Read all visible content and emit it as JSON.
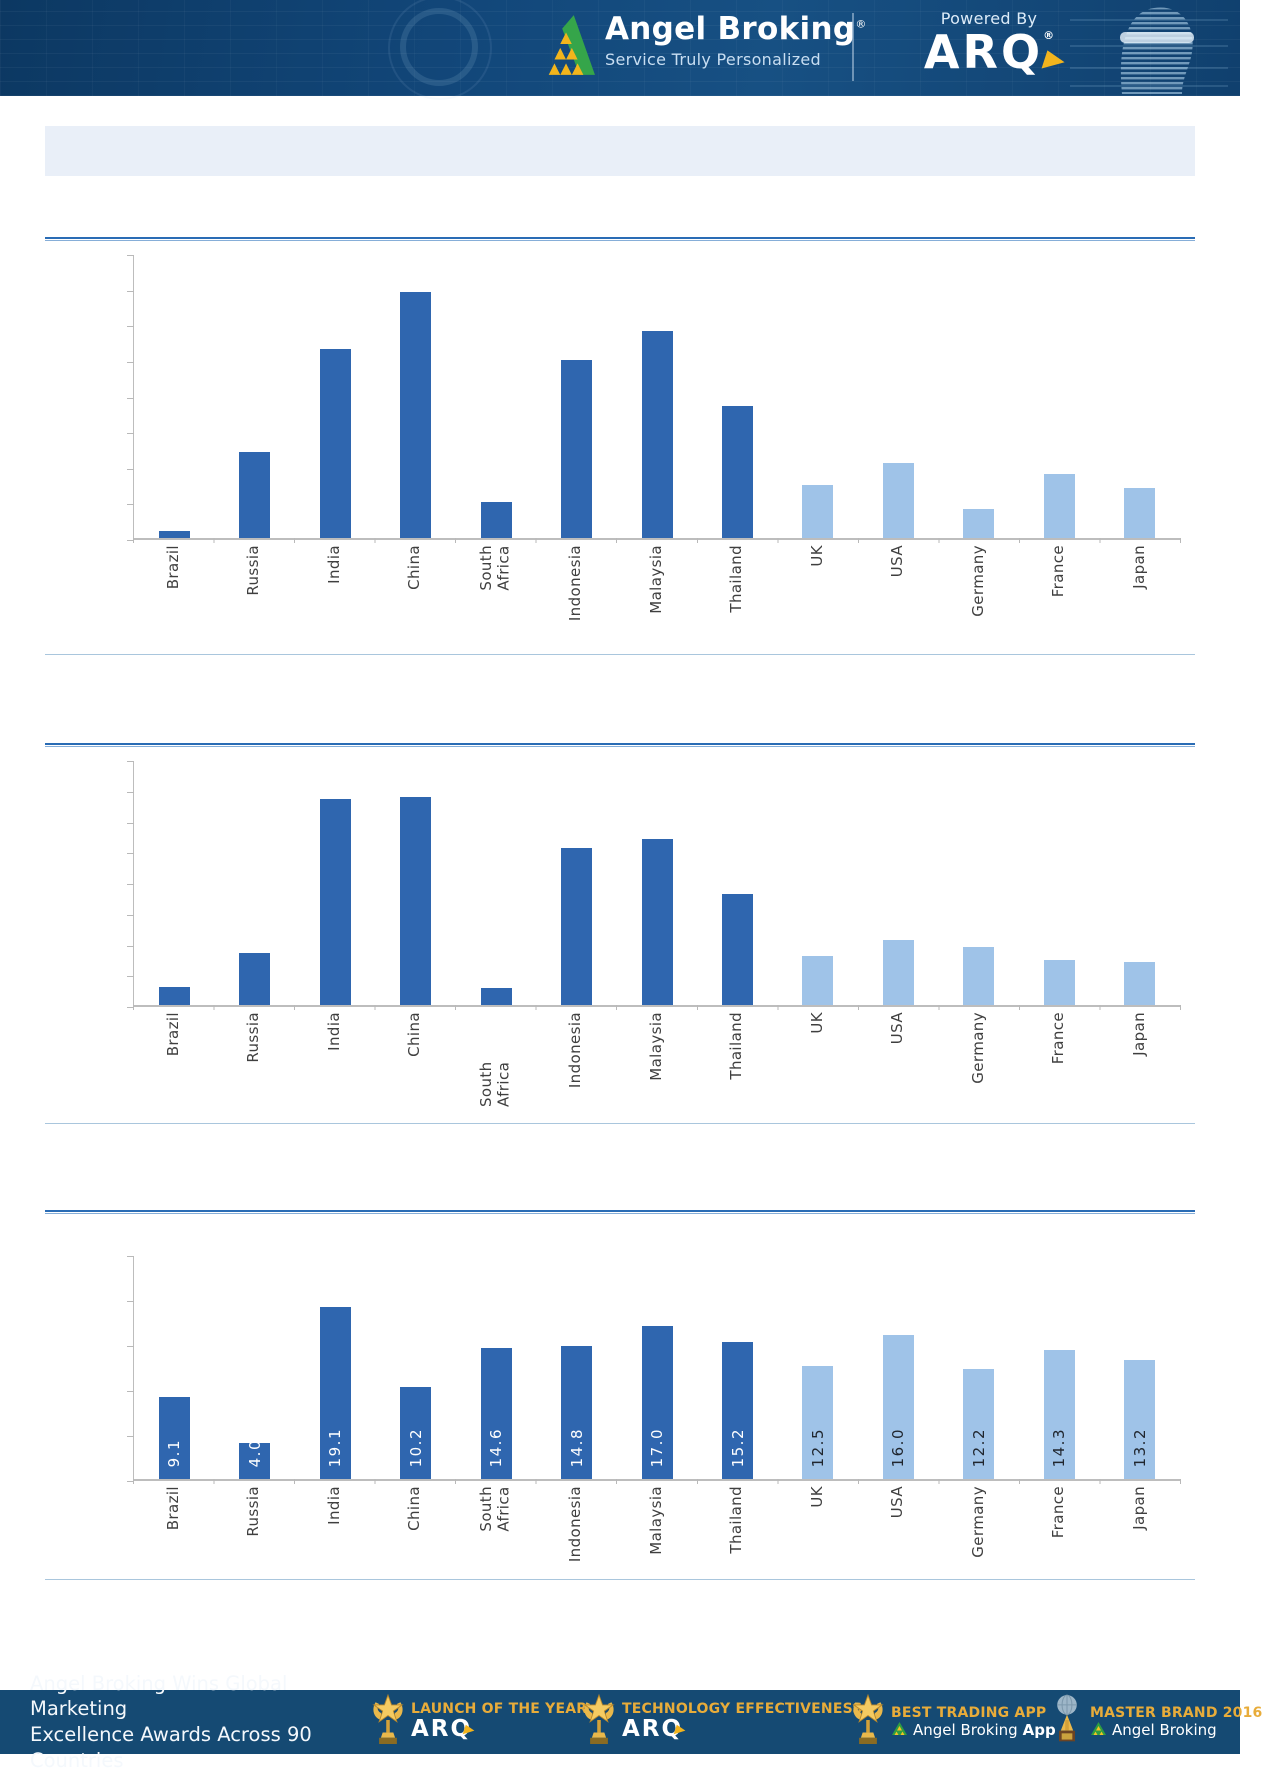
{
  "page": {
    "title_bar_text": ""
  },
  "header": {
    "brand": "Angel Broking",
    "brand_mark": "®",
    "tagline": "Service Truly Personalized",
    "powered_by": "Powered By",
    "arq": "ARQ",
    "arq_mark": "®"
  },
  "chart_data": [
    {
      "type": "bar",
      "title": "",
      "categories": [
        "Brazil",
        "Russia",
        "India",
        "China",
        "South Africa",
        "Indonesia",
        "Malaysia",
        "Thailand",
        "UK",
        "USA",
        "Germany",
        "France",
        "Japan"
      ],
      "values": [
        0.2,
        2.4,
        5.3,
        6.9,
        1.0,
        5.0,
        5.8,
        3.7,
        1.5,
        2.1,
        0.8,
        1.8,
        1.4
      ],
      "emerging_count": 8,
      "ylim": [
        0,
        8
      ],
      "y_tick_interval": 1,
      "y_tick_labels_visible": false,
      "data_labels_visible": false,
      "grid": false,
      "legend": "none",
      "colors": {
        "emerging": "#2f66af",
        "developed": "#9fc3e8"
      }
    },
    {
      "type": "bar",
      "title": "",
      "categories": [
        "Brazil",
        "Russia",
        "India",
        "China",
        "South Africa",
        "Indonesia",
        "Malaysia",
        "Thailand",
        "UK",
        "USA",
        "Germany",
        "France",
        "Japan"
      ],
      "values": [
        0.6,
        1.7,
        6.7,
        6.75,
        0.55,
        5.1,
        5.4,
        3.6,
        1.6,
        2.1,
        1.9,
        1.45,
        1.4
      ],
      "emerging_count": 8,
      "ylim": [
        0,
        8
      ],
      "y_tick_interval": 1,
      "y_tick_labels_visible": false,
      "data_labels_visible": false,
      "grid": false,
      "legend": "none",
      "colors": {
        "emerging": "#2f66af",
        "developed": "#9fc3e8"
      }
    },
    {
      "type": "bar",
      "title": "",
      "categories": [
        "Brazil",
        "Russia",
        "India",
        "China",
        "South Africa",
        "Indonesia",
        "Malaysia",
        "Thailand",
        "UK",
        "USA",
        "Germany",
        "France",
        "Japan"
      ],
      "values": [
        9.1,
        4.0,
        19.1,
        10.2,
        14.6,
        14.8,
        17.0,
        15.2,
        12.5,
        16.0,
        12.2,
        14.3,
        13.2
      ],
      "data_labels": [
        "9.1",
        "4.0",
        "19.1",
        "10.2",
        "14.6",
        "14.8",
        "17.0",
        "15.2",
        "12.5",
        "16.0",
        "12.2",
        "14.3",
        "13.2"
      ],
      "emerging_count": 8,
      "ylim": [
        0,
        25
      ],
      "y_tick_interval": 5,
      "y_tick_labels_visible": false,
      "data_labels_visible": true,
      "grid": false,
      "legend": "none",
      "colors": {
        "emerging": "#2f66af",
        "developed": "#9fc3e8",
        "label_on_emerging": "#ffffff",
        "label_on_developed": "#20262e"
      }
    }
  ],
  "footer": {
    "message_line1": "Angel Broking Wins Global Marketing",
    "message_line2": "Excellence Awards Across 90 Countries",
    "awards": [
      {
        "icon": "trophy-star-icon",
        "title": "LAUNCH OF THE YEAR",
        "sub": "ARQ",
        "sub_bold": "",
        "sub_type": "arq"
      },
      {
        "icon": "trophy-star-icon",
        "title": "TECHNOLOGY EFFECTIVENESS",
        "sub": "ARQ",
        "sub_bold": "",
        "sub_type": "arq"
      },
      {
        "icon": "trophy-star-icon",
        "title": "BEST TRADING APP",
        "sub": "Angel Broking ",
        "sub_bold": "App",
        "sub_type": "brand"
      },
      {
        "icon": "trophy-globe-icon",
        "title": "MASTER BRAND 2016",
        "sub": "Angel Broking",
        "sub_bold": "",
        "sub_type": "brand"
      }
    ]
  }
}
